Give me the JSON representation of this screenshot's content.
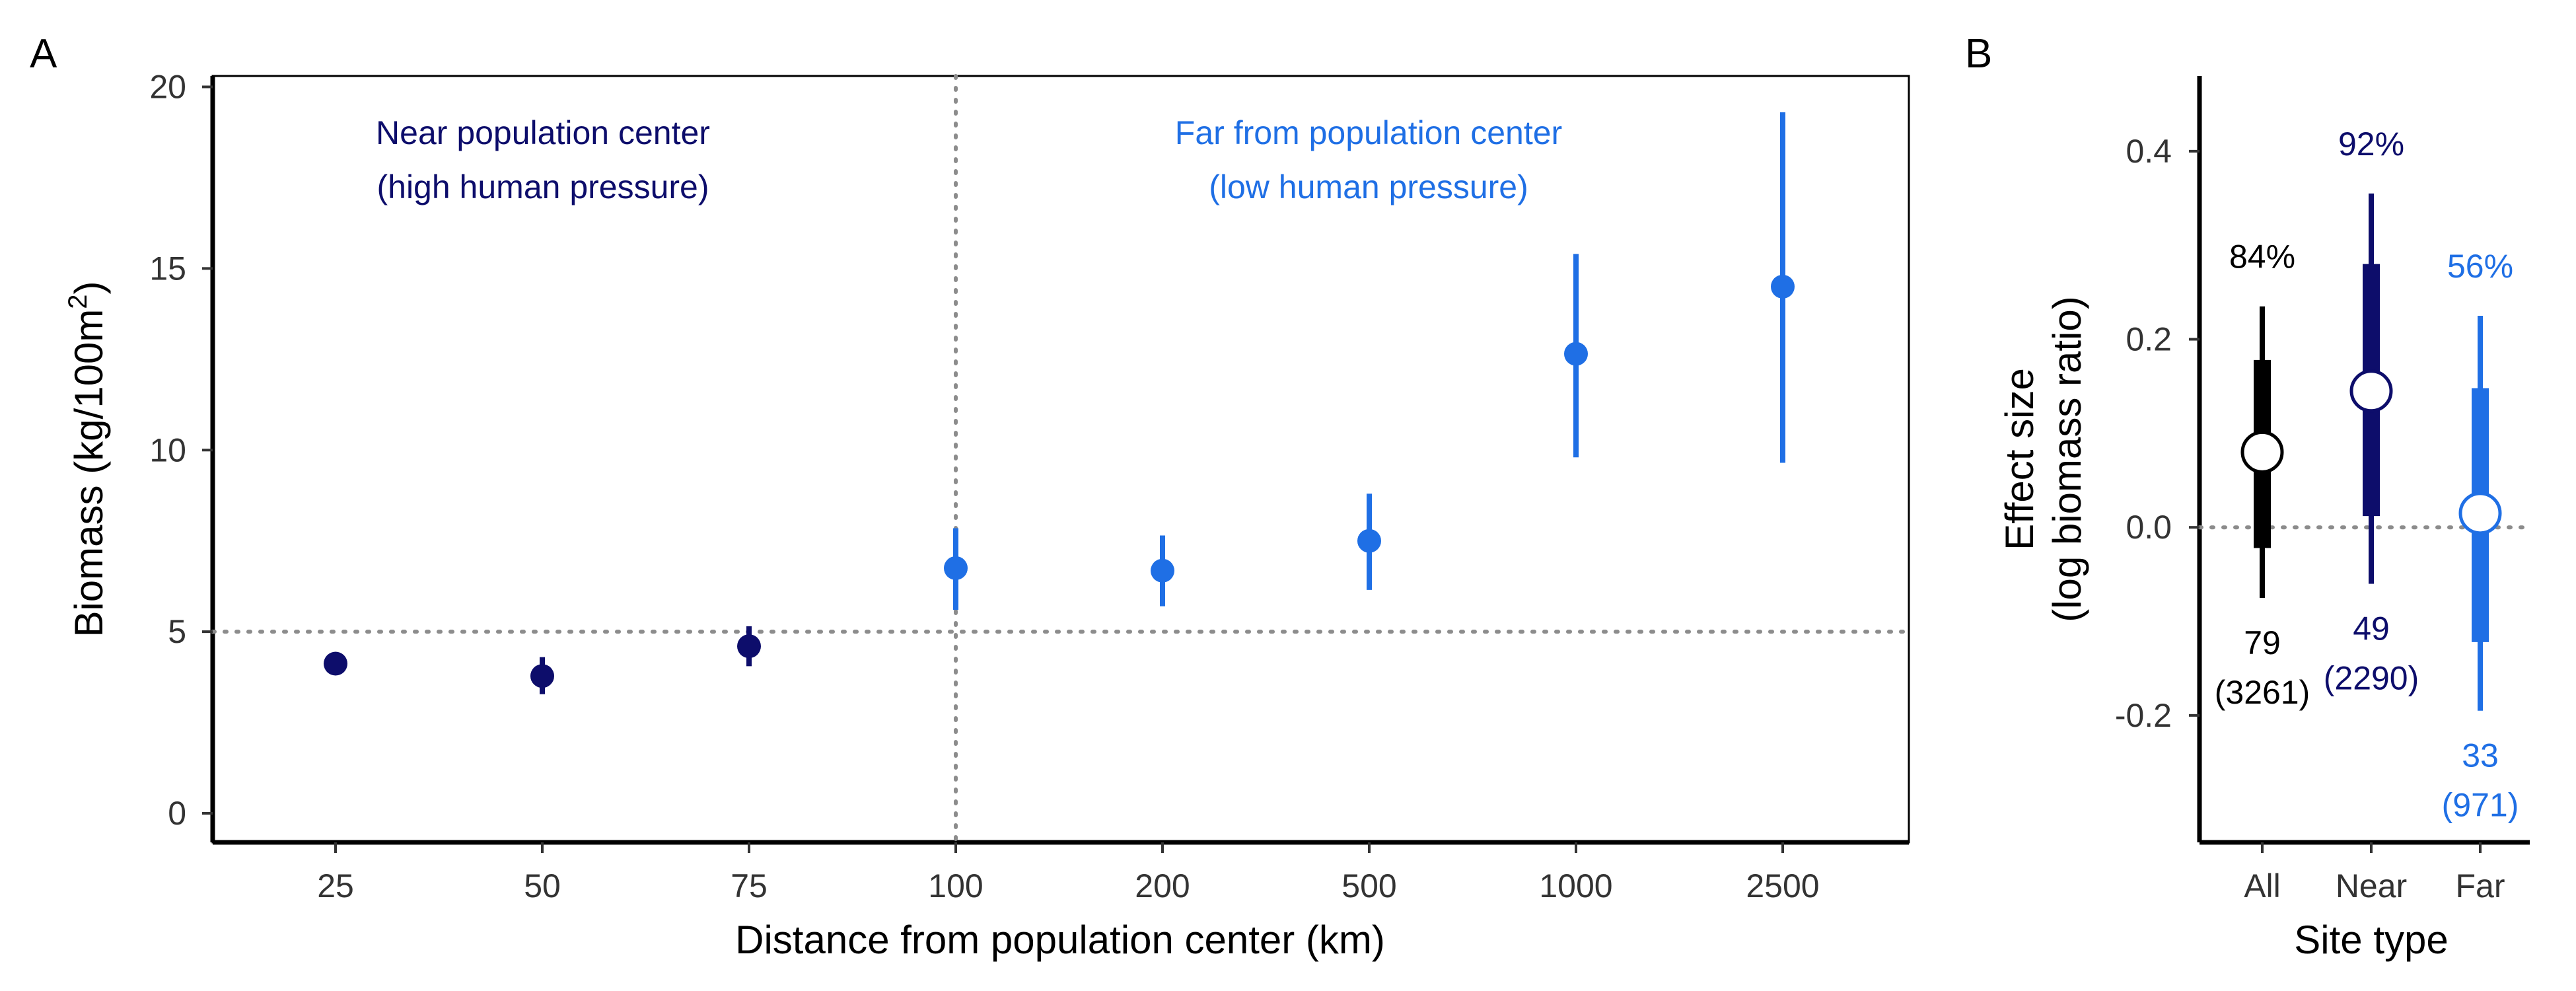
{
  "colors": {
    "near": "#0d0d6b",
    "far": "#1f6fe5",
    "all": "#000000",
    "reference": "#8c8c8c"
  },
  "chart_data": [
    {
      "panel": "A",
      "type": "scatter",
      "xlabel": "Distance from population center (km)",
      "ylabel_main": "Biomass (kg/100m",
      "ylabel_sup": "2",
      "ylabel_close": ")",
      "categories": [
        "25",
        "50",
        "75",
        "100",
        "200",
        "500",
        "1000",
        "2500"
      ],
      "ylim": [
        -0.8,
        20.3
      ],
      "yticks": [
        0,
        5,
        10,
        15,
        20
      ],
      "reference_line_y": 5,
      "reference_line_x": "100",
      "grid": false,
      "series": [
        {
          "group": "near",
          "points": [
            {
              "x": "25",
              "y": 4.12,
              "low": 3.85,
              "high": 4.38
            },
            {
              "x": "50",
              "y": 3.78,
              "low": 3.28,
              "high": 4.3
            },
            {
              "x": "75",
              "y": 4.6,
              "low": 4.05,
              "high": 5.15
            }
          ]
        },
        {
          "group": "far",
          "points": [
            {
              "x": "100",
              "y": 6.75,
              "low": 5.6,
              "high": 7.85
            },
            {
              "x": "200",
              "y": 6.68,
              "low": 5.7,
              "high": 7.65
            },
            {
              "x": "500",
              "y": 7.5,
              "low": 6.15,
              "high": 8.8
            },
            {
              "x": "1000",
              "y": 12.65,
              "low": 9.8,
              "high": 15.4
            },
            {
              "x": "2500",
              "y": 14.5,
              "low": 9.65,
              "high": 19.3
            }
          ]
        }
      ],
      "annotations": {
        "near_line1": "Near population center",
        "near_line2": "(high human pressure)",
        "far_line1": "Far from population center",
        "far_line2": "(low human pressure)"
      }
    },
    {
      "panel": "B",
      "type": "scatter",
      "xlabel": "Site type",
      "ylabel_line1": "Effect size",
      "ylabel_line2": "(log biomass ratio)",
      "categories": [
        "All",
        "Near",
        "Far"
      ],
      "ylim": [
        -0.335,
        0.48
      ],
      "yticks": [
        {
          "value": 0.4,
          "label": "0.4"
        },
        {
          "value": 0.2,
          "label": "0.2"
        },
        {
          "value": 0.0,
          "label": "0.0"
        },
        {
          "value": -0.2,
          "label": "-0.2"
        }
      ],
      "reference_line_y": 0,
      "grid": false,
      "estimates": [
        {
          "category": "All",
          "group": "all",
          "y": 0.08,
          "thin": [
            -0.075,
            0.235
          ],
          "thick": [
            -0.022,
            0.178
          ],
          "percent": "84%",
          "n": "79",
          "n_paren": "(3261)"
        },
        {
          "category": "Near",
          "group": "near",
          "y": 0.145,
          "thin": [
            -0.06,
            0.355
          ],
          "thick": [
            0.012,
            0.28
          ],
          "percent": "92%",
          "n": "49",
          "n_paren": "(2290)"
        },
        {
          "category": "Far",
          "group": "far",
          "y": 0.015,
          "thin": [
            -0.195,
            0.225
          ],
          "thick": [
            -0.122,
            0.148
          ],
          "percent": "56%",
          "n": "33",
          "n_paren": "(971)"
        }
      ]
    }
  ]
}
